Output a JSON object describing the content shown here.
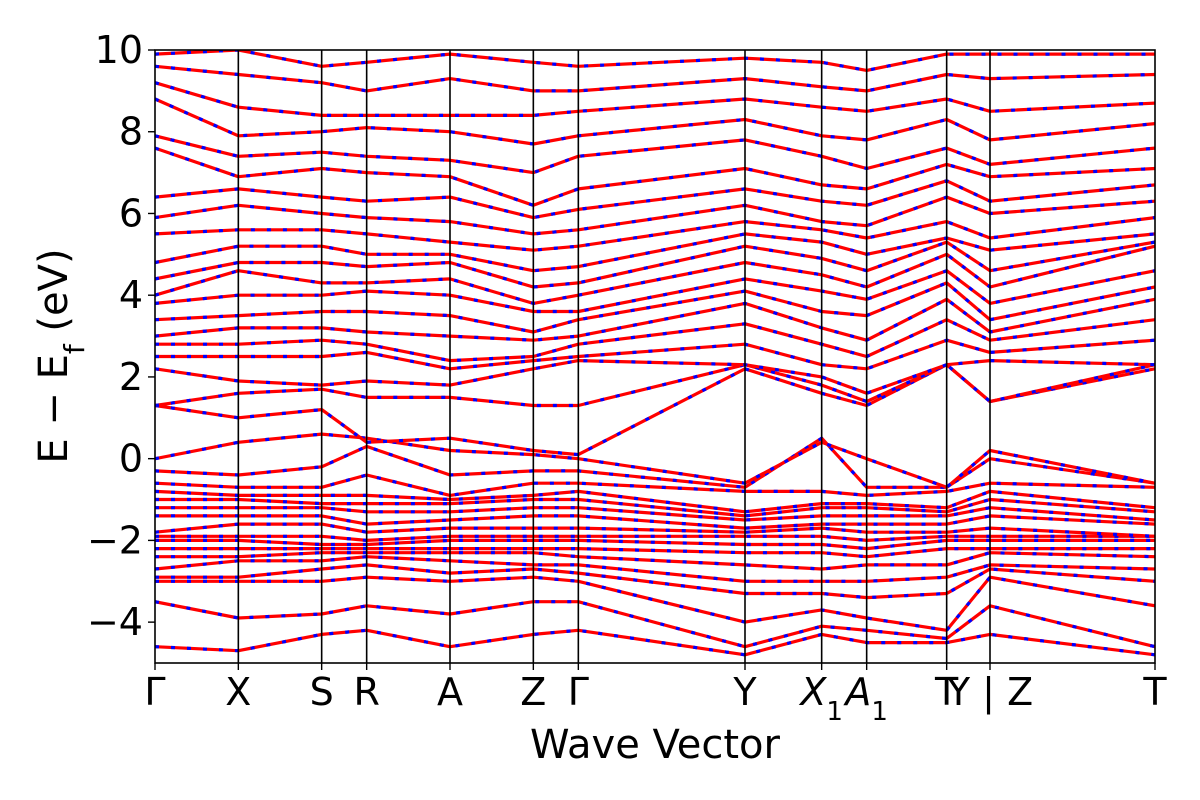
{
  "chart_data": {
    "type": "line",
    "title": "",
    "xlabel": "Wave Vector",
    "ylabel": "E − E_f (eV)",
    "ylabel_parts": {
      "main": "E − E",
      "sub": "f",
      "unit": " (eV)"
    },
    "ylim": [
      -5,
      10
    ],
    "yticks": [
      -4,
      -2,
      0,
      2,
      4,
      6,
      8,
      10
    ],
    "ytick_labels": [
      "−4",
      "−2",
      "0",
      "2",
      "4",
      "6",
      "8",
      "10"
    ],
    "grid": false,
    "legend": "none",
    "kpoints": [
      {
        "label": "Γ",
        "x": 0.0
      },
      {
        "label": "X",
        "x": 0.5
      },
      {
        "label": "S",
        "x": 1.0
      },
      {
        "label": "R",
        "x": 1.27
      },
      {
        "label": "A",
        "x": 1.77
      },
      {
        "label": "Z",
        "x": 2.27
      },
      {
        "label": "Γ",
        "x": 2.54
      },
      {
        "label": "Y",
        "x": 3.54
      },
      {
        "label": "X₁",
        "x": 4.0,
        "base": "X",
        "sub": "1"
      },
      {
        "label": "A₁",
        "x": 4.27,
        "base": "A",
        "sub": "1"
      },
      {
        "label": "T",
        "x": 4.75
      },
      {
        "label": "Y | Z",
        "x": 5.01
      },
      {
        "label": "T",
        "x": 6.0
      }
    ],
    "xlim": [
      0,
      6.0
    ],
    "series": [
      {
        "color": "#ff0000",
        "style": "solid"
      },
      {
        "color": "#0000ff",
        "style": "dashed"
      }
    ],
    "bands": [
      [
        -4.6,
        -4.7,
        -4.3,
        -4.2,
        -4.6,
        -4.3,
        -4.2,
        -4.8,
        -4.3,
        -4.5,
        -4.5,
        -4.3,
        -4.8
      ],
      [
        -3.5,
        -3.9,
        -3.8,
        -3.6,
        -3.8,
        -3.5,
        -3.5,
        -4.6,
        -4.1,
        -4.2,
        -4.4,
        -3.6,
        -4.6
      ],
      [
        -3.0,
        -3.0,
        -3.0,
        -2.9,
        -3.0,
        -2.9,
        -3.0,
        -4.0,
        -3.7,
        -3.9,
        -4.2,
        -2.9,
        -3.6
      ],
      [
        -2.9,
        -2.9,
        -2.7,
        -2.6,
        -2.8,
        -2.7,
        -2.8,
        -3.3,
        -3.3,
        -3.4,
        -3.3,
        -2.7,
        -3.0
      ],
      [
        -2.7,
        -2.5,
        -2.5,
        -2.4,
        -2.5,
        -2.6,
        -2.6,
        -3.0,
        -3.0,
        -3.0,
        -2.9,
        -2.6,
        -2.7
      ],
      [
        -2.4,
        -2.4,
        -2.3,
        -2.3,
        -2.3,
        -2.3,
        -2.4,
        -2.6,
        -2.7,
        -2.6,
        -2.6,
        -2.3,
        -2.4
      ],
      [
        -2.2,
        -2.2,
        -2.2,
        -2.2,
        -2.2,
        -2.2,
        -2.2,
        -2.3,
        -2.3,
        -2.4,
        -2.2,
        -2.2,
        -2.2
      ],
      [
        -2.0,
        -2.0,
        -2.1,
        -2.1,
        -2.0,
        -2.0,
        -2.0,
        -2.1,
        -2.1,
        -2.2,
        -2.0,
        -2.0,
        -2.0
      ],
      [
        -1.9,
        -1.9,
        -1.9,
        -2.0,
        -1.9,
        -1.9,
        -1.9,
        -1.9,
        -1.9,
        -2.0,
        -1.9,
        -1.9,
        -1.9
      ],
      [
        -1.8,
        -1.6,
        -1.6,
        -1.8,
        -1.7,
        -1.7,
        -1.7,
        -1.8,
        -1.7,
        -1.8,
        -1.8,
        -1.7,
        -1.9
      ],
      [
        -1.4,
        -1.4,
        -1.4,
        -1.6,
        -1.5,
        -1.4,
        -1.4,
        -1.7,
        -1.6,
        -1.6,
        -1.6,
        -1.4,
        -1.6
      ],
      [
        -1.2,
        -1.2,
        -1.2,
        -1.3,
        -1.3,
        -1.2,
        -1.2,
        -1.5,
        -1.4,
        -1.4,
        -1.4,
        -1.2,
        -1.5
      ],
      [
        -1.0,
        -1.0,
        -1.1,
        -1.1,
        -1.1,
        -1.0,
        -1.0,
        -1.4,
        -1.2,
        -1.2,
        -1.3,
        -1.0,
        -1.3
      ],
      [
        -0.8,
        -0.9,
        -0.9,
        -0.9,
        -1.0,
        -0.9,
        -0.8,
        -1.3,
        -1.1,
        -1.1,
        -1.2,
        -0.8,
        -1.2
      ],
      [
        -0.6,
        -0.7,
        -0.7,
        -0.4,
        -0.9,
        -0.6,
        -0.6,
        -0.8,
        -0.8,
        -0.9,
        -0.8,
        -0.6,
        -0.7
      ],
      [
        -0.3,
        -0.4,
        -0.2,
        0.3,
        -0.4,
        -0.3,
        -0.3,
        -0.7,
        0.5,
        -0.7,
        -0.7,
        0.0,
        -0.6
      ],
      [
        0.0,
        0.4,
        0.6,
        0.5,
        0.2,
        0.1,
        0.0,
        -0.6,
        0.4,
        0.0,
        -0.7,
        0.2,
        -0.6
      ],
      [
        1.3,
        1.0,
        1.2,
        0.4,
        0.5,
        0.2,
        0.1,
        2.2,
        1.6,
        1.3,
        2.3,
        1.4,
        2.2
      ],
      [
        1.3,
        1.6,
        1.7,
        1.5,
        1.5,
        1.3,
        1.3,
        2.3,
        1.8,
        1.4,
        2.3,
        1.4,
        2.3
      ],
      [
        2.2,
        1.9,
        1.8,
        1.9,
        1.8,
        2.2,
        2.4,
        2.3,
        2.0,
        1.6,
        2.3,
        2.4,
        2.3
      ],
      [
        2.5,
        2.5,
        2.5,
        2.6,
        2.2,
        2.4,
        2.5,
        2.8,
        2.3,
        2.2,
        2.9,
        2.6,
        2.9
      ],
      [
        2.8,
        2.8,
        2.9,
        2.8,
        2.4,
        2.5,
        2.8,
        3.3,
        2.8,
        2.5,
        3.4,
        2.9,
        3.4
      ],
      [
        3.0,
        3.2,
        3.2,
        3.1,
        3.0,
        2.9,
        3.0,
        3.8,
        3.2,
        2.9,
        3.9,
        3.1,
        3.9
      ],
      [
        3.4,
        3.5,
        3.6,
        3.6,
        3.5,
        3.1,
        3.4,
        4.1,
        3.6,
        3.5,
        4.3,
        3.4,
        4.2
      ],
      [
        3.8,
        4.0,
        4.0,
        4.1,
        4.0,
        3.6,
        3.6,
        4.4,
        4.1,
        3.9,
        4.6,
        3.8,
        4.6
      ],
      [
        4.0,
        4.6,
        4.3,
        4.3,
        4.4,
        3.8,
        4.0,
        4.8,
        4.5,
        4.2,
        5.0,
        4.2,
        5.2
      ],
      [
        4.4,
        4.8,
        4.8,
        4.7,
        4.8,
        4.2,
        4.3,
        5.2,
        4.9,
        4.6,
        5.3,
        4.6,
        5.3
      ],
      [
        4.8,
        5.2,
        5.2,
        5.0,
        5.0,
        4.6,
        4.7,
        5.5,
        5.3,
        5.0,
        5.4,
        5.1,
        5.5
      ],
      [
        5.5,
        5.6,
        5.6,
        5.5,
        5.3,
        5.1,
        5.2,
        5.8,
        5.6,
        5.4,
        5.8,
        5.4,
        5.9
      ],
      [
        5.9,
        6.2,
        6.0,
        5.9,
        5.8,
        5.5,
        5.6,
        6.2,
        5.8,
        5.7,
        6.4,
        6.0,
        6.3
      ],
      [
        6.4,
        6.6,
        6.4,
        6.3,
        6.4,
        5.9,
        6.1,
        6.6,
        6.3,
        6.2,
        6.8,
        6.3,
        6.7
      ],
      [
        7.6,
        6.9,
        7.1,
        7.0,
        6.9,
        6.2,
        6.6,
        7.1,
        6.7,
        6.6,
        7.2,
        6.9,
        7.1
      ],
      [
        7.9,
        7.4,
        7.5,
        7.4,
        7.3,
        7.0,
        7.4,
        7.8,
        7.4,
        7.1,
        7.6,
        7.2,
        7.6
      ],
      [
        8.8,
        7.9,
        8.0,
        8.1,
        8.0,
        7.7,
        7.9,
        8.3,
        7.9,
        7.8,
        8.3,
        7.8,
        8.2
      ],
      [
        9.2,
        8.6,
        8.4,
        8.4,
        8.4,
        8.4,
        8.5,
        8.8,
        8.6,
        8.5,
        8.8,
        8.5,
        8.7
      ],
      [
        9.6,
        9.4,
        9.2,
        9.0,
        9.3,
        9.0,
        9.0,
        9.3,
        9.1,
        9.0,
        9.4,
        9.3,
        9.4
      ],
      [
        9.9,
        10.0,
        9.6,
        9.7,
        9.9,
        9.7,
        9.6,
        9.8,
        9.7,
        9.5,
        9.9,
        9.9,
        9.9
      ]
    ]
  }
}
